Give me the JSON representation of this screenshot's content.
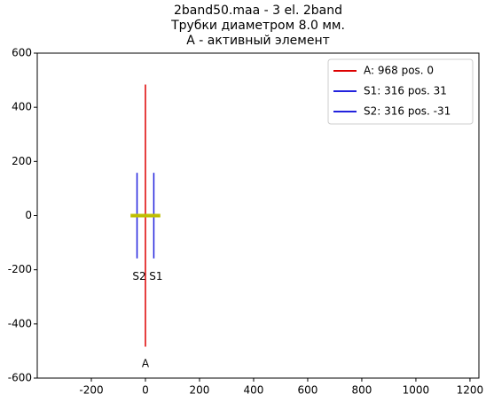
{
  "chart_data": {
    "type": "line",
    "title": [
      "2band50.maa - 3 el. 2band",
      "Трубки диаметром 8.0 мм.",
      "A - активный элемент"
    ],
    "series": [
      {
        "name": "A: 968 pos. 0",
        "color": "#dd0000",
        "x": [
          0,
          0
        ],
        "values": [
          -484,
          484
        ]
      },
      {
        "name": "S1: 316 pos. 31",
        "color": "#2222dd",
        "x": [
          31,
          31
        ],
        "values": [
          -158,
          158
        ]
      },
      {
        "name": "S2: 316 pos. -31",
        "color": "#2222dd",
        "x": [
          -31,
          -31
        ],
        "values": [
          -158,
          158
        ]
      },
      {
        "color": "#bfbf00",
        "x": [
          -55,
          55
        ],
        "values": [
          0,
          0
        ],
        "linewidth": 4
      }
    ],
    "annotations": [
      {
        "text": "S2",
        "x": -23,
        "y": -225
      },
      {
        "text": "S1",
        "x": 39,
        "y": -225
      },
      {
        "text": "A",
        "x": 0,
        "y": -548
      }
    ],
    "xlim": [
      -400,
      1233
    ],
    "ylim": [
      -600,
      600
    ],
    "xticks": [
      -200,
      0,
      200,
      400,
      600,
      800,
      1000,
      1200
    ],
    "yticks": [
      -600,
      -400,
      -200,
      0,
      200,
      400,
      600
    ],
    "legend": "upper right"
  }
}
